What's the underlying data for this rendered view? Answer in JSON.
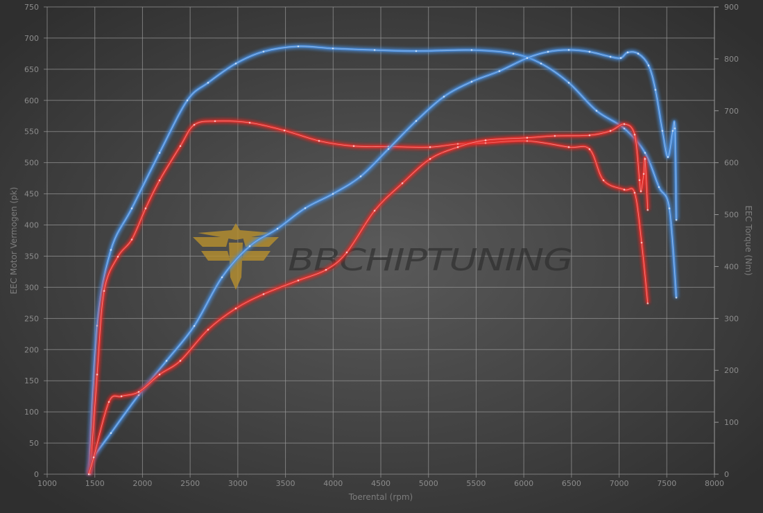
{
  "chart_data": {
    "type": "line",
    "title": "",
    "xlabel": "Toerental (rpm)",
    "ylabel_left": "EEC Motor Vermogen (pk)",
    "ylabel_right": "EEC Torque (Nm)",
    "xlim": [
      1000,
      8000
    ],
    "ylim_left": [
      0,
      750
    ],
    "ylim_right": [
      0,
      900
    ],
    "x_ticks": [
      "1000",
      "1500",
      "2000",
      "2500",
      "3000",
      "3500",
      "4000",
      "4500",
      "5000",
      "5500",
      "6000",
      "6500",
      "7000",
      "7500",
      "8000"
    ],
    "y_left_ticks": [
      "0",
      "50",
      "100",
      "150",
      "200",
      "250",
      "300",
      "350",
      "400",
      "450",
      "500",
      "550",
      "600",
      "650",
      "700",
      "750"
    ],
    "y_right_ticks": [
      "0",
      "100",
      "200",
      "300",
      "400",
      "500",
      "600",
      "700",
      "800",
      "900"
    ],
    "grid": true,
    "legend": "none",
    "watermark": "BBCHIPTUNING",
    "series": [
      {
        "axis": "right",
        "color": "#4a90e2",
        "x": [
          1437,
          1524,
          1669,
          1888,
          2179,
          2470,
          2688,
          2979,
          3270,
          3634,
          3998,
          4435,
          4871,
          5453,
          5890,
          6181,
          6472,
          6763,
          7054,
          7272,
          7418,
          7527,
          7600
        ],
        "y": [
          0,
          286,
          432,
          512,
          619,
          720,
          754,
          791,
          814,
          824,
          820,
          817,
          815,
          817,
          810,
          791,
          754,
          700,
          666,
          619,
          553,
          512,
          340
        ]
      },
      {
        "axis": "right",
        "color": "#e8302a",
        "x": [
          1451,
          1524,
          1597,
          1742,
          1888,
          2033,
          2179,
          2397,
          2543,
          2761,
          3125,
          3489,
          3852,
          4216,
          4580,
          5017,
          5308,
          5599,
          6035,
          6472,
          6690,
          6836,
          7054,
          7163,
          7236,
          7300
        ],
        "y": [
          0,
          192,
          353,
          419,
          452,
          512,
          566,
          632,
          673,
          680,
          677,
          662,
          642,
          632,
          631,
          630,
          636,
          638,
          642,
          630,
          626,
          566,
          548,
          542,
          446,
          329
        ]
      },
      {
        "axis": "left",
        "color": "#4a90e2",
        "x": [
          1437,
          1488,
          1669,
          1960,
          2252,
          2543,
          2834,
          3125,
          3416,
          3707,
          3998,
          4289,
          4580,
          4871,
          5162,
          5453,
          5744,
          6035,
          6254,
          6472,
          6690,
          6909,
          7018,
          7090,
          7200,
          7309,
          7381,
          7454,
          7512,
          7563,
          7585,
          7600
        ],
        "y": [
          0,
          27,
          66,
          127,
          182,
          238,
          316,
          366,
          394,
          427,
          450,
          478,
          522,
          567,
          606,
          630,
          647,
          668,
          678,
          681,
          678,
          670,
          668,
          677,
          675,
          656,
          617,
          551,
          509,
          551,
          555,
          408
        ]
      },
      {
        "axis": "left",
        "color": "#e8302a",
        "x": [
          1437,
          1488,
          1648,
          1779,
          1960,
          2179,
          2397,
          2688,
          2979,
          3270,
          3634,
          3925,
          4143,
          4435,
          4726,
          5017,
          5308,
          5599,
          6035,
          6326,
          6690,
          6909,
          7054,
          7163,
          7214,
          7229,
          7258,
          7272,
          7300
        ],
        "y": [
          0,
          27,
          116,
          125,
          132,
          160,
          182,
          232,
          266,
          289,
          311,
          328,
          356,
          423,
          467,
          506,
          525,
          536,
          540,
          543,
          544,
          551,
          562,
          545,
          472,
          454,
          482,
          506,
          424
        ]
      }
    ]
  }
}
